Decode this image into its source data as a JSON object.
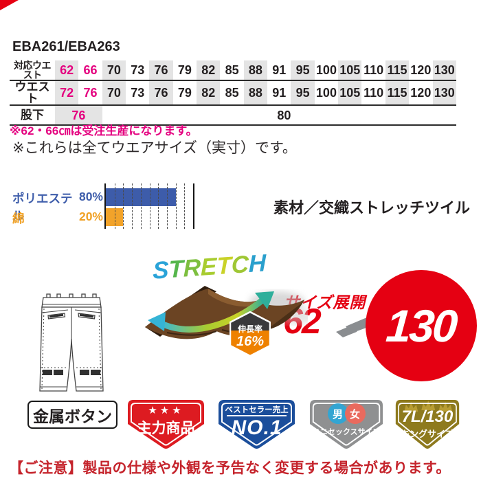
{
  "title": "EBA261/EBA263",
  "size_table": {
    "row1_label": "対応ウエスト",
    "row2_label": "ウエスト",
    "row3_label": "股下",
    "row1": [
      "62",
      "66",
      "70",
      "73",
      "76",
      "79",
      "82",
      "85",
      "88",
      "91",
      "95",
      "100",
      "105",
      "110",
      "115",
      "120",
      "130"
    ],
    "row2": [
      "72",
      "76",
      "70",
      "73",
      "76",
      "79",
      "82",
      "85",
      "88",
      "91",
      "95",
      "100",
      "105",
      "110",
      "115",
      "120",
      "130"
    ],
    "inseam_left": "76",
    "inseam_right": "80"
  },
  "notes": {
    "order_note": "※62・66㎝は受注生産になります。",
    "size_note": "※これらは全てウエアサイズ（実寸）です。"
  },
  "material": {
    "heading": "素材／交織ストレッチツイル",
    "rows": [
      {
        "label": "ポリエステル",
        "pct": "80%"
      },
      {
        "label": "綿",
        "pct": "20%"
      }
    ]
  },
  "chart_data": {
    "type": "bar",
    "categories": [
      "ポリエステル",
      "綿"
    ],
    "values": [
      80,
      20
    ],
    "unit": "%",
    "xlim": [
      0,
      100
    ],
    "gridline_step": 10,
    "bar_colors": [
      "#3d5caa",
      "#f2a32a"
    ],
    "orientation": "horizontal"
  },
  "stretch": {
    "word": "STRETCH",
    "badge_label": "伸長率",
    "badge_value": "16%"
  },
  "size_range": {
    "heading": "サイズ展開",
    "from": "62",
    "to": "130"
  },
  "feature_box": {
    "label": "金属ボタン"
  },
  "badges": {
    "flagship": {
      "stars": "★★★",
      "label": "主力商品"
    },
    "bestseller": {
      "top": "ベストセラー売上",
      "main": "NO.1"
    },
    "unisex": {
      "male": "男",
      "female": "女",
      "label": "ユニセックスサイズ"
    },
    "king": {
      "size": "7L/130",
      "label": "キングサイズ"
    }
  },
  "footer": {
    "note": "【ご注意】製品の仕様や外観を予告なく変更する場合があります。"
  },
  "colors": {
    "accent_pink": "#e4007f",
    "accent_red": "#e50012",
    "table_shade": "#e4e4e4",
    "bar_blue": "#3d5caa",
    "bar_orange": "#f2a32a",
    "badge_red": "#dd1b21",
    "badge_blue": "#1b4e9b",
    "badge_gray": "#8f9091",
    "badge_gold": "#8e7a1e",
    "hex_dark": "#3a393b",
    "hex_orange": "#ee8100",
    "footer_red": "#c5242c"
  }
}
